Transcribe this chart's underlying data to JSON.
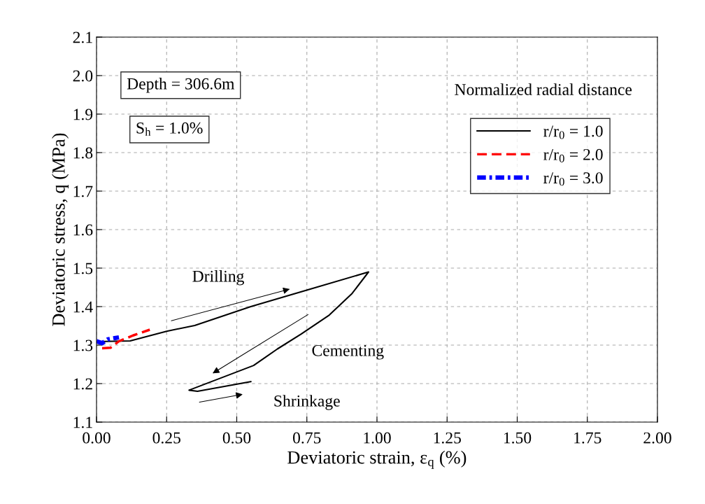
{
  "chart_data": {
    "type": "line",
    "xlabel": "Deviatoric strain, ε$_{q}$ (%)",
    "ylabel": "Deviatoric stress, q (MPa)",
    "legend_title": "Normalized radial distance",
    "legend": "top right",
    "grid": true,
    "xlim": [
      0,
      2
    ],
    "xticks": [
      {
        "value": 0,
        "label": "0.00"
      },
      {
        "value": 0.25,
        "label": "0.25"
      },
      {
        "value": 0.5,
        "label": "0.50"
      },
      {
        "value": 0.75,
        "label": "0.75"
      },
      {
        "value": 1,
        "label": "1.00"
      },
      {
        "value": 1.25,
        "label": "1.25"
      },
      {
        "value": 1.5,
        "label": "1.50"
      },
      {
        "value": 1.75,
        "label": "1.75"
      },
      {
        "value": 2,
        "label": "2.00"
      }
    ],
    "ylim": [
      1.1,
      2.1
    ],
    "yticks": [
      1.1,
      1.2,
      1.3,
      1.4,
      1.5,
      1.6,
      1.7,
      1.8,
      1.9,
      {
        "value": 2.0,
        "label": "2.0"
      },
      2.1
    ],
    "series": [
      {
        "name": "r/r$_{0}$ = 1.0",
        "color": "#000000",
        "line_style": "solid",
        "x": [
          0.005,
          0.12,
          0.25,
          0.35,
          0.55,
          0.76,
          0.97,
          0.91,
          0.83,
          0.73,
          0.645,
          0.56,
          0.33,
          0.36,
          0.55
        ],
        "values": [
          1.309,
          1.311,
          1.336,
          1.351,
          1.4,
          1.445,
          1.49,
          1.433,
          1.378,
          1.329,
          1.29,
          1.247,
          1.183,
          1.18,
          1.205
        ]
      },
      {
        "name": "r/r$_{0}$ = 2.0",
        "color": "#ff0000",
        "line_style": "dashed",
        "x": [
          0.02,
          0.05,
          0.08,
          0.13,
          0.19
        ],
        "values": [
          1.292,
          1.293,
          1.31,
          1.325,
          1.34
        ]
      },
      {
        "name": "r/r$_{0}$ = 3.0",
        "color": "#0000ff",
        "line_style": "dashdot",
        "x": [
          0.0,
          0.02,
          0.04,
          0.08
        ],
        "values": [
          1.31,
          1.305,
          1.315,
          1.32
        ]
      }
    ],
    "annotations": [
      "Depth = 306.6m",
      "S$_{h}$ = 1.0%",
      "Drilling",
      "Cementing",
      "Shrinkage"
    ]
  }
}
